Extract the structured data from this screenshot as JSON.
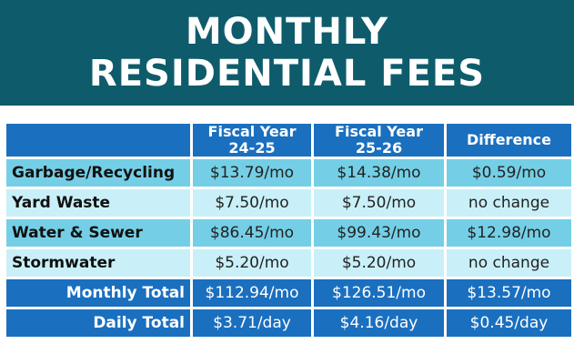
{
  "title": {
    "line1": "MONTHLY",
    "line2": "RESIDENTIAL FEES"
  },
  "colors": {
    "banner": "#0e5c6b",
    "header": "#1a6fbf",
    "row_dark": "#74cfe6",
    "row_light": "#c9f0f8",
    "total": "#1a6fbf"
  },
  "chart_data": {
    "type": "table",
    "title": "MONTHLY RESIDENTIAL FEES",
    "columns": [
      "",
      "Fiscal Year 24-25",
      "Fiscal Year 25-26",
      "Difference"
    ],
    "column_lines": [
      [
        ""
      ],
      [
        "Fiscal Year",
        "24-25"
      ],
      [
        "Fiscal Year",
        "25-26"
      ],
      [
        "Difference"
      ]
    ],
    "rows": [
      {
        "label": "Garbage/Recycling",
        "fy2425": "$13.79/mo",
        "fy2526": "$14.38/mo",
        "difference": "$0.59/mo",
        "style": "dark"
      },
      {
        "label": "Yard Waste",
        "fy2425": "$7.50/mo",
        "fy2526": "$7.50/mo",
        "difference": "no change",
        "style": "light"
      },
      {
        "label": "Water & Sewer",
        "fy2425": "$86.45/mo",
        "fy2526": "$99.43/mo",
        "difference": "$12.98/mo",
        "style": "dark"
      },
      {
        "label": "Stormwater",
        "fy2425": "$5.20/mo",
        "fy2526": "$5.20/mo",
        "difference": "no change",
        "style": "light"
      },
      {
        "label": "Monthly Total",
        "fy2425": "$112.94/mo",
        "fy2526": "$126.51/mo",
        "difference": "$13.57/mo",
        "style": "total"
      },
      {
        "label": "Daily Total",
        "fy2425": "$3.71/day",
        "fy2526": "$4.16/day",
        "difference": "$0.45/day",
        "style": "total"
      }
    ]
  }
}
